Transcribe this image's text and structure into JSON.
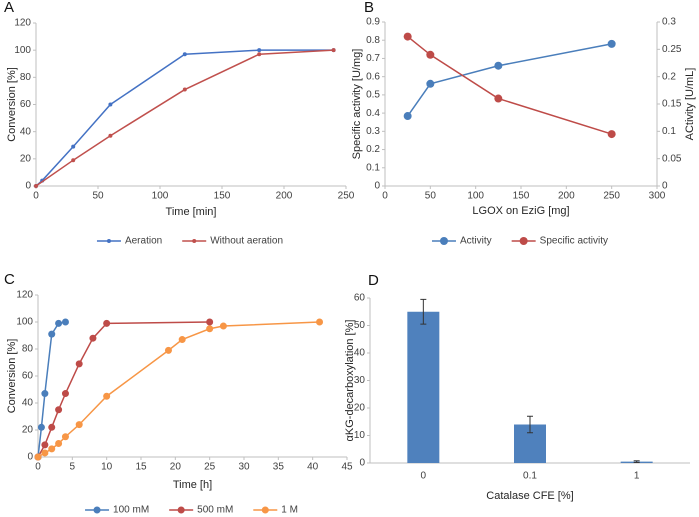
{
  "chart_data": [
    {
      "type": "line",
      "label": "A",
      "xlabel": "Time [min]",
      "ylabel": "Conversion [%]",
      "xlim": [
        0,
        250
      ],
      "xticks": [
        0,
        50,
        100,
        150,
        200,
        250
      ],
      "ylim": [
        0,
        120
      ],
      "yticks": [
        0,
        20,
        40,
        60,
        80,
        100,
        120
      ],
      "legend": "bottom",
      "marker_size": 2,
      "series": [
        {
          "name": "Aeration",
          "color": "#4472c4",
          "x": [
            0,
            5,
            30,
            60,
            120,
            180,
            240
          ],
          "values": [
            0,
            4,
            29,
            60,
            97,
            100,
            100
          ]
        },
        {
          "name": "Without aeration",
          "color": "#c0504d",
          "x": [
            0,
            30,
            60,
            120,
            180,
            240
          ],
          "values": [
            0,
            19,
            37,
            71,
            97,
            100
          ]
        }
      ]
    },
    {
      "type": "line",
      "label": "B",
      "xlabel": "LGOX on EziG [mg]",
      "ylabel": "Specific activity [U/mg]",
      "y2label": "ACtivity [U/mL]",
      "xlim": [
        0,
        300
      ],
      "xticks": [
        0,
        50,
        100,
        150,
        200,
        250,
        300
      ],
      "ylim": [
        0,
        0.9
      ],
      "yticks": [
        0,
        0.1,
        0.2,
        0.3,
        0.4,
        0.5,
        0.6,
        0.7,
        0.8,
        0.9
      ],
      "y2lim": [
        0,
        0.3
      ],
      "y2ticks": [
        0,
        0.05,
        0.1,
        0.15,
        0.2,
        0.25,
        0.3
      ],
      "legend": "bottom",
      "marker_size": 4,
      "series": [
        {
          "name": "Activity",
          "color": "#4a7ebb",
          "axis": "y2",
          "x": [
            25,
            50,
            125,
            250
          ],
          "values": [
            0.128,
            0.187,
            0.22,
            0.26
          ]
        },
        {
          "name": "Specific activity",
          "color": "#be4b48",
          "x": [
            25,
            50,
            125,
            250
          ],
          "values": [
            0.82,
            0.72,
            0.48,
            0.285
          ]
        }
      ]
    },
    {
      "type": "line",
      "label": "C",
      "xlabel": "Time [h]",
      "ylabel": "Conversion [%]",
      "xlim": [
        0,
        45
      ],
      "xticks": [
        0,
        5,
        10,
        15,
        20,
        25,
        30,
        35,
        40,
        45
      ],
      "ylim": [
        0,
        120
      ],
      "yticks": [
        0,
        20,
        40,
        60,
        80,
        100,
        120
      ],
      "legend": "bottom",
      "marker_size": 3.5,
      "series": [
        {
          "name": "100 mM",
          "color": "#4a7ebb",
          "x": [
            0,
            0.5,
            1,
            2,
            3,
            4
          ],
          "values": [
            0,
            22,
            47,
            91,
            99,
            100
          ]
        },
        {
          "name": "500 mM",
          "color": "#be4b48",
          "x": [
            0,
            1,
            2,
            3,
            4,
            6,
            8,
            10,
            25
          ],
          "values": [
            0,
            9,
            22,
            35,
            47,
            69,
            88,
            99,
            100
          ]
        },
        {
          "name": "1 M",
          "color": "#f79646",
          "x": [
            0,
            1,
            2,
            3,
            4,
            6,
            10,
            19,
            21,
            25,
            27,
            41
          ],
          "values": [
            0,
            3,
            6,
            10,
            15,
            24,
            45,
            79,
            87,
            95,
            97,
            100
          ]
        }
      ]
    },
    {
      "type": "bar",
      "label": "D",
      "xlabel": "Catalase CFE [%]",
      "ylabel": "αKG-decarboxylation [%]",
      "categories": [
        "0",
        "0.1",
        "1"
      ],
      "values": [
        55,
        14,
        0.5
      ],
      "errors": [
        4.5,
        3,
        0.3
      ],
      "color": "#4f81bd",
      "ylim": [
        0,
        60
      ],
      "yticks": [
        0,
        10,
        20,
        30,
        40,
        50,
        60
      ]
    }
  ]
}
